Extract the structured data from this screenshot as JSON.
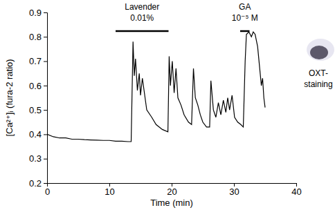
{
  "chart_data": {
    "type": "line",
    "x_label": "Time (min)",
    "y_label": "[Ca²⁺]ᵢ (fura-2 ratio)",
    "xlim": [
      0,
      40
    ],
    "xticks": [
      0,
      10,
      20,
      30,
      40
    ],
    "ylim": [
      0.2,
      0.9
    ],
    "yticks": [
      0.2,
      0.3,
      0.4,
      0.5,
      0.6,
      0.7,
      0.8,
      0.9
    ],
    "grid": false,
    "color": "#000000",
    "x": [
      0,
      1,
      2,
      3,
      4,
      5,
      6,
      7,
      8,
      9,
      10,
      11,
      12,
      13,
      13.5,
      13.8,
      14.0,
      14.2,
      14.5,
      14.8,
      15.0,
      15.3,
      16,
      16.8,
      17.5,
      18.5,
      19.4,
      19.6,
      19.8,
      20.1,
      20.4,
      20.7,
      21.0,
      21.5,
      22,
      22.7,
      23.2,
      23.5,
      23.8,
      24.2,
      24.6,
      25.0,
      25.6,
      26.1,
      26.3,
      26.7,
      27.1,
      27.5,
      27.9,
      28.3,
      28.7,
      29.0,
      29.3,
      29.7,
      30.1,
      30.6,
      31.1,
      31.5,
      31.8,
      32.0,
      32.4,
      32.8,
      33.1,
      33.4,
      33.8,
      34.1,
      34.4,
      34.6,
      34.8,
      35.0
    ],
    "y": [
      0.4,
      0.39,
      0.385,
      0.385,
      0.38,
      0.38,
      0.378,
      0.377,
      0.376,
      0.375,
      0.375,
      0.372,
      0.372,
      0.37,
      0.37,
      0.78,
      0.64,
      0.71,
      0.58,
      0.65,
      0.56,
      0.63,
      0.5,
      0.47,
      0.44,
      0.42,
      0.41,
      0.72,
      0.6,
      0.7,
      0.57,
      0.67,
      0.55,
      0.52,
      0.48,
      0.45,
      0.44,
      0.67,
      0.55,
      0.52,
      0.48,
      0.45,
      0.43,
      0.43,
      0.62,
      0.5,
      0.47,
      0.53,
      0.48,
      0.54,
      0.49,
      0.55,
      0.5,
      0.56,
      0.47,
      0.45,
      0.44,
      0.43,
      0.7,
      0.81,
      0.82,
      0.8,
      0.82,
      0.81,
      0.76,
      0.68,
      0.6,
      0.63,
      0.55,
      0.51
    ],
    "annotations": [
      {
        "lines": [
          "Lavender",
          "0.01%"
        ],
        "x": [
          11,
          19.5
        ]
      },
      {
        "lines": [
          "GA",
          "10⁻⁵ M"
        ],
        "x": [
          31,
          32.5
        ]
      }
    ],
    "side_note": [
      "OXT-",
      "staining"
    ]
  }
}
